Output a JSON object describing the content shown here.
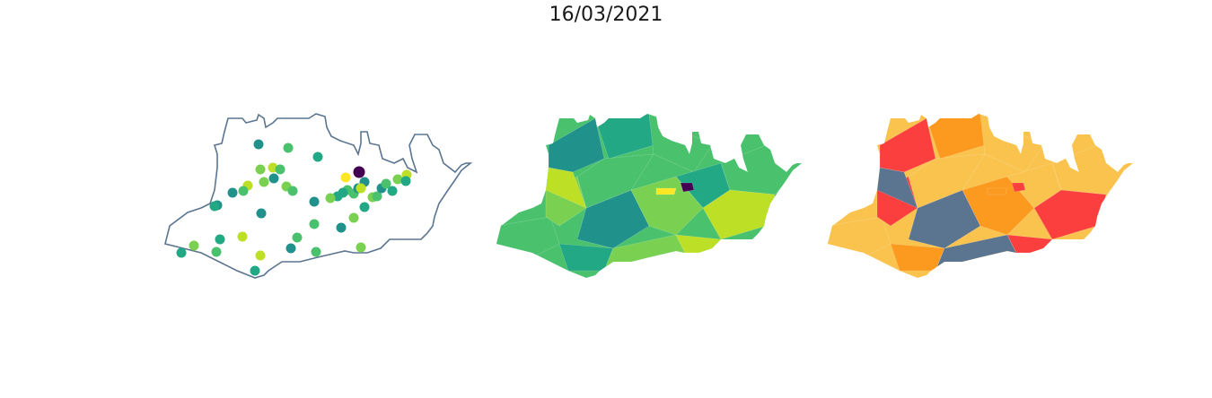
{
  "title": "16/03/2021",
  "panels": [
    {
      "id": "points",
      "type": "point-map",
      "colors": {
        "outline": "#5b7590",
        "background": "#ffffff"
      },
      "points": [
        {
          "c": "#21918c"
        },
        {
          "c": "#4ac16d"
        },
        {
          "c": "#22a884"
        },
        {
          "c": "#7ad151"
        },
        {
          "c": "#bddf26"
        },
        {
          "c": "#4ac16d"
        },
        {
          "c": "#7ad151"
        },
        {
          "c": "#21918c"
        },
        {
          "c": "#7ad151"
        },
        {
          "c": "#4ac16d"
        },
        {
          "c": "#bddf26"
        },
        {
          "c": "#4ac16d"
        },
        {
          "c": "#21918c"
        },
        {
          "c": "#21918c"
        },
        {
          "c": "#22a884"
        },
        {
          "c": "#440154"
        },
        {
          "c": "#fde725"
        },
        {
          "c": "#21918c"
        },
        {
          "c": "#4ac16d"
        },
        {
          "c": "#22a884"
        },
        {
          "c": "#21918c"
        },
        {
          "c": "#7ad151"
        },
        {
          "c": "#22a884"
        },
        {
          "c": "#4ac16d"
        },
        {
          "c": "#21918c"
        },
        {
          "c": "#7ad151"
        },
        {
          "c": "#4ac16d"
        },
        {
          "c": "#21918c"
        },
        {
          "c": "#4ac16d"
        },
        {
          "c": "#22a884"
        },
        {
          "c": "#7ad151"
        },
        {
          "c": "#bddf26"
        },
        {
          "c": "#22a884"
        },
        {
          "c": "#21918c"
        },
        {
          "c": "#4ac16d"
        },
        {
          "c": "#7ad151"
        },
        {
          "c": "#bddf26"
        },
        {
          "c": "#22a884"
        },
        {
          "c": "#21918c"
        },
        {
          "c": "#4ac16d"
        },
        {
          "c": "#22a884"
        },
        {
          "c": "#7ad151"
        },
        {
          "c": "#22a884"
        },
        {
          "c": "#4ac16d"
        },
        {
          "c": "#bddf26"
        }
      ]
    },
    {
      "id": "choropleth-viridis",
      "type": "choropleth",
      "palette": [
        "#21918c",
        "#4ac16d",
        "#7ad151",
        "#bddf26",
        "#22a884",
        "#440154",
        "#fde725"
      ]
    },
    {
      "id": "choropleth-risk",
      "type": "choropleth",
      "palette": [
        "#f9c34d",
        "#fb3f3f",
        "#fb9a1e",
        "#5b7590"
      ]
    }
  ]
}
